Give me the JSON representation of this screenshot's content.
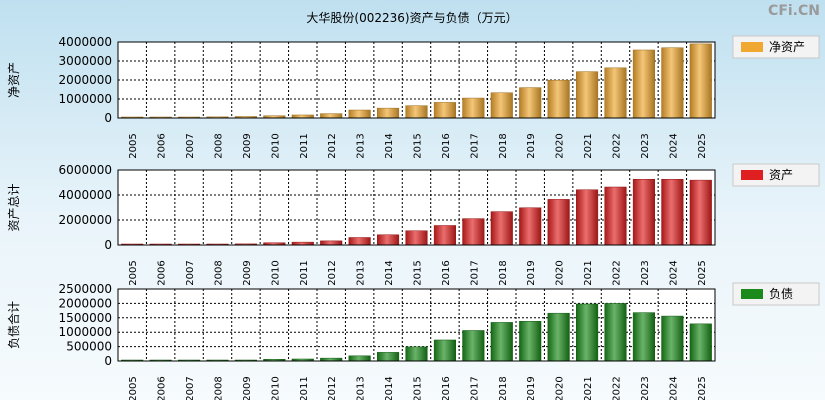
{
  "page": {
    "title": "大华股份(002236)资产与负债（万元）",
    "watermark": "CFi.CN"
  },
  "chart_data": [
    {
      "type": "bar",
      "ylabel": "净资产",
      "legend": "净资产",
      "color": "#f0a830",
      "ylim": [
        0,
        4000000
      ],
      "yticks": [
        "0",
        "1000000",
        "2000000",
        "3000000",
        "4000000"
      ],
      "categories": [
        "2005",
        "2006",
        "2007",
        "2008",
        "2009",
        "2010",
        "2011",
        "2012",
        "2013",
        "2014",
        "2015",
        "2016",
        "2017",
        "2018",
        "2019",
        "2020",
        "2021",
        "2022",
        "2023",
        "2024",
        "2025"
      ],
      "values": [
        10000,
        15000,
        30000,
        60000,
        80000,
        120000,
        160000,
        230000,
        420000,
        520000,
        650000,
        820000,
        1050000,
        1330000,
        1600000,
        1990000,
        2440000,
        2640000,
        3580000,
        3700000,
        3900000
      ]
    },
    {
      "type": "bar",
      "ylabel": "资产总计",
      "legend": "资产",
      "color": "#e02020",
      "ylim": [
        0,
        6000000
      ],
      "yticks": [
        "0",
        "2000000",
        "4000000",
        "6000000"
      ],
      "categories": [
        "2005",
        "2006",
        "2007",
        "2008",
        "2009",
        "2010",
        "2011",
        "2012",
        "2013",
        "2014",
        "2015",
        "2016",
        "2017",
        "2018",
        "2019",
        "2020",
        "2021",
        "2022",
        "2023",
        "2024",
        "2025"
      ],
      "values": [
        15000,
        25000,
        40000,
        70000,
        90000,
        180000,
        230000,
        330000,
        600000,
        820000,
        1140000,
        1560000,
        2110000,
        2670000,
        2980000,
        3650000,
        4420000,
        4640000,
        5260000,
        5260000,
        5190000
      ]
    },
    {
      "type": "bar",
      "ylabel": "负债合计",
      "legend": "负债",
      "color": "#1a8a1a",
      "ylim": [
        0,
        2500000
      ],
      "yticks": [
        "0",
        "500000",
        "1000000",
        "1500000",
        "2000000",
        "2500000"
      ],
      "categories": [
        "2005",
        "2006",
        "2007",
        "2008",
        "2009",
        "2010",
        "2011",
        "2012",
        "2013",
        "2014",
        "2015",
        "2016",
        "2017",
        "2018",
        "2019",
        "2020",
        "2021",
        "2022",
        "2023",
        "2024",
        "2025"
      ],
      "values": [
        5000,
        10000,
        15000,
        20000,
        25000,
        60000,
        70000,
        100000,
        180000,
        300000,
        490000,
        730000,
        1060000,
        1340000,
        1380000,
        1660000,
        1980000,
        2000000,
        1680000,
        1560000,
        1290000
      ]
    }
  ]
}
